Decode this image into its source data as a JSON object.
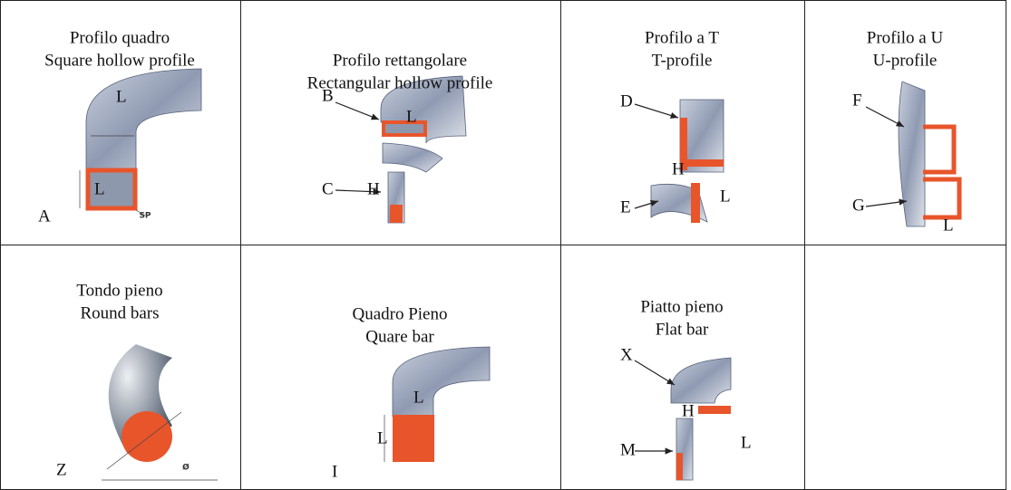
{
  "table": {
    "rows": [
      [
        {
          "title": "Profilo quadro",
          "subtitle": "Square hollow profile",
          "labels": [
            "A",
            "L",
            "L",
            "SP"
          ]
        },
        {
          "title": "Profilo rettangolare",
          "subtitle": "Rectangular hollow profile",
          "labels": [
            "B",
            "C",
            "L",
            "H"
          ]
        },
        {
          "title": "Profilo a T",
          "subtitle": "T-profile",
          "labels": [
            "D",
            "E",
            "H",
            "L"
          ]
        },
        {
          "title": "Profilo a U",
          "subtitle": "U-profile",
          "labels": [
            "F",
            "G",
            "L"
          ]
        }
      ],
      [
        {
          "title": "Tondo pieno",
          "subtitle": "Round bars",
          "labels": [
            "Z",
            "Ø"
          ]
        },
        {
          "title": "Quadro Pieno",
          "subtitle": "Quare bar",
          "labels": [
            "I",
            "L",
            "L"
          ]
        },
        {
          "title": "Piatto pieno",
          "subtitle": "Flat bar",
          "labels": [
            "X",
            "M",
            "H",
            "L"
          ]
        }
      ]
    ]
  }
}
